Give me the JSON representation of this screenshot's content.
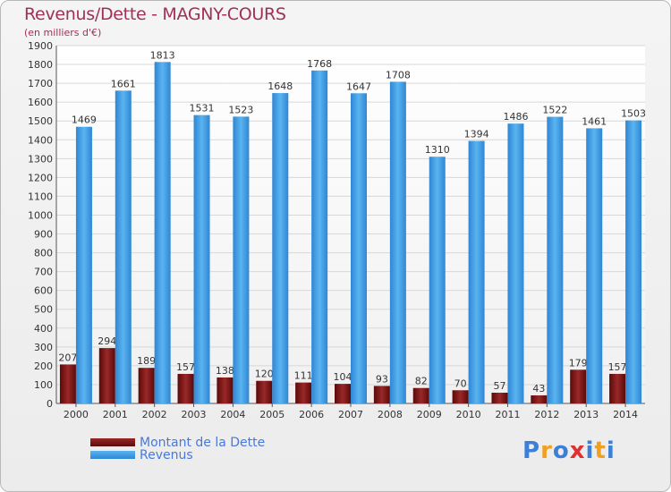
{
  "chart_data": {
    "type": "bar",
    "title": "Revenus/Dette - MAGNY-COURS",
    "subtitle": "(en milliers d'€)",
    "categories": [
      "2000",
      "2001",
      "2002",
      "2003",
      "2004",
      "2005",
      "2006",
      "2007",
      "2008",
      "2009",
      "2010",
      "2011",
      "2012",
      "2013",
      "2014"
    ],
    "series": [
      {
        "name": "Montant de la Dette",
        "color": "#7a1414",
        "values": [
          207,
          294,
          189,
          157,
          138,
          120,
          111,
          104,
          93,
          82,
          70,
          57,
          43,
          179,
          157
        ]
      },
      {
        "name": "Revenus",
        "color": "#3f9ee6",
        "values": [
          1469,
          1661,
          1813,
          1531,
          1523,
          1648,
          1768,
          1647,
          1708,
          1310,
          1394,
          1486,
          1522,
          1461,
          1503
        ]
      }
    ],
    "ylim": [
      0,
      1900
    ],
    "yticks": [
      0,
      100,
      200,
      300,
      400,
      500,
      600,
      700,
      800,
      900,
      1000,
      1100,
      1200,
      1300,
      1400,
      1500,
      1600,
      1700,
      1800,
      1900
    ],
    "grid": true,
    "legend_position": "bottom-left"
  },
  "logo": {
    "letters": [
      "P",
      "r",
      "o",
      "x",
      "i",
      "t",
      "i"
    ],
    "colors": [
      "#3b7fd6",
      "#f0a020",
      "#3b7fd6",
      "#e03030",
      "#3b7fd6",
      "#f0a020",
      "#3b7fd6"
    ]
  }
}
